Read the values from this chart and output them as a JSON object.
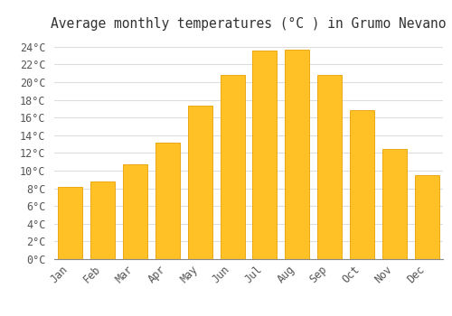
{
  "title": "Average monthly temperatures (°C ) in Grumo Nevano",
  "months": [
    "Jan",
    "Feb",
    "Mar",
    "Apr",
    "May",
    "Jun",
    "Jul",
    "Aug",
    "Sep",
    "Oct",
    "Nov",
    "Dec"
  ],
  "values": [
    8.2,
    8.8,
    10.7,
    13.2,
    17.3,
    20.8,
    23.6,
    23.7,
    20.8,
    16.8,
    12.5,
    9.5
  ],
  "bar_color": "#FFC125",
  "bar_edge_color": "#E8A000",
  "background_color": "#FFFFFF",
  "grid_color": "#DDDDDD",
  "ylim": [
    0,
    25
  ],
  "yticks": [
    0,
    2,
    4,
    6,
    8,
    10,
    12,
    14,
    16,
    18,
    20,
    22,
    24
  ],
  "title_fontsize": 10.5,
  "tick_fontsize": 8.5
}
